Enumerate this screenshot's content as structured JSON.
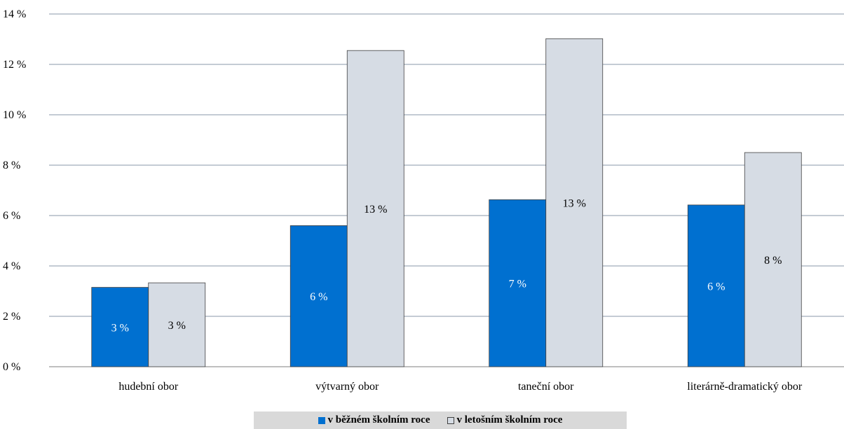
{
  "chart_data": {
    "type": "bar",
    "categories": [
      "hudební obor",
      "výtvarný obor",
      "taneční obor",
      "literárně-dramatický obor"
    ],
    "series": [
      {
        "name": "v běžném školním roce",
        "values": [
          3.15,
          5.6,
          6.63,
          6.42
        ],
        "labels": [
          "3 %",
          "6 %",
          "7 %",
          "6 %"
        ],
        "color": "#0070d0",
        "label_color": "#ffffff"
      },
      {
        "name": "v letošním školním roce",
        "values": [
          3.33,
          12.55,
          13.02,
          8.5
        ],
        "labels": [
          "3 %",
          "13 %",
          "13 %",
          "8 %"
        ],
        "color": "#d6dce4",
        "label_color": "#000000"
      }
    ],
    "ylim": [
      0,
      14
    ],
    "yticks": [
      0,
      2,
      4,
      6,
      8,
      10,
      12,
      14
    ],
    "ytick_labels": [
      "0 %",
      "2 %",
      "4 %",
      "6 %",
      "8 %",
      "10 %",
      "12 %",
      "14 %"
    ],
    "grid": true,
    "legend_position": "bottom",
    "title": "",
    "xlabel": "",
    "ylabel": ""
  }
}
